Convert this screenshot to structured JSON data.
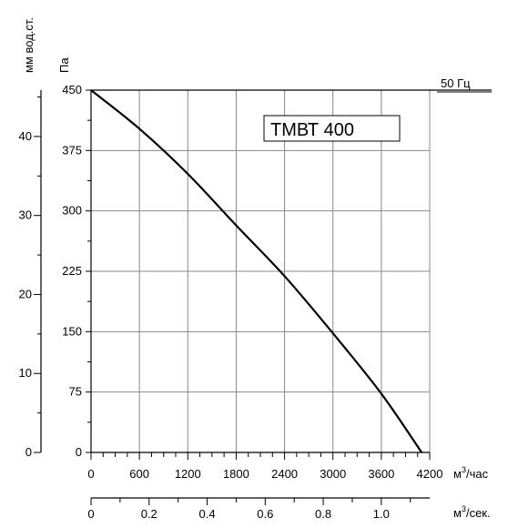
{
  "chart_data": {
    "type": "line",
    "model_label": "ТМВТ 400",
    "frequency_label": "50 Гц",
    "y_pa": {
      "unit": "Па",
      "ticks": [
        0,
        75,
        150,
        225,
        300,
        375,
        450
      ],
      "ylim": [
        0,
        450
      ]
    },
    "y_mm": {
      "unit": "мм вод.ст.",
      "ticks": [
        0,
        10,
        20,
        30,
        40
      ],
      "ylim": [
        0,
        45.87
      ]
    },
    "x_m3h": {
      "unit_base": "м",
      "unit_sup": "3",
      "unit_tail": "/час",
      "ticks": [
        0,
        600,
        1200,
        1800,
        2400,
        3000,
        3600,
        4200
      ],
      "xlim": [
        0,
        4200
      ]
    },
    "x_m3s": {
      "unit_base": "м",
      "unit_sup": "3",
      "unit_tail": "/сек.",
      "ticks": [
        "0",
        "0.2",
        "0.4",
        "0.6",
        "0.8",
        "1.0"
      ],
      "tick_values": [
        0,
        0.2,
        0.4,
        0.6,
        0.8,
        1.0
      ],
      "xlim": [
        0,
        1.1667
      ]
    },
    "grid": true,
    "series": [
      {
        "x": [
          0,
          600,
          1200,
          1800,
          2400,
          3000,
          3600,
          4100
        ],
        "y": [
          450,
          402,
          346,
          282,
          219,
          148,
          73,
          0
        ]
      }
    ]
  }
}
